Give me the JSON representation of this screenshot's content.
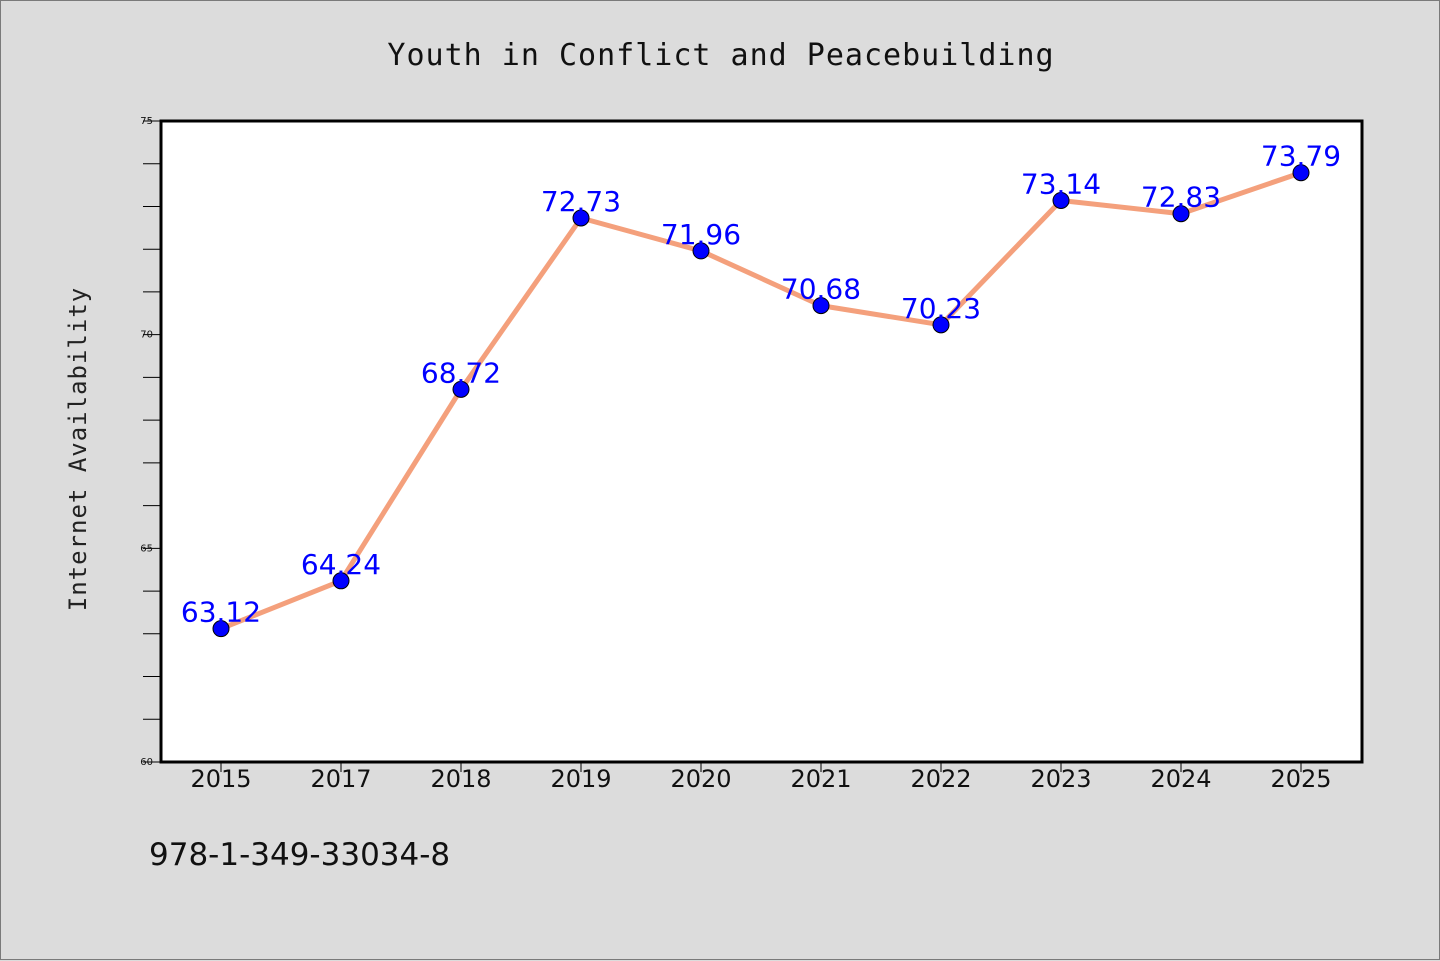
{
  "isbn": "978-1-349-33034-8",
  "colors": {
    "background": "#dcdcdc",
    "plot_area": "#ffffff",
    "line": "#f4a07c",
    "marker": "#0000ff",
    "data_label": "#0000ff"
  },
  "chart_data": {
    "type": "line",
    "title": "Youth in Conflict and Peacebuilding",
    "xlabel": "",
    "ylabel": "Internet Availability",
    "categories": [
      "2015",
      "2017",
      "2018",
      "2019",
      "2020",
      "2021",
      "2022",
      "2023",
      "2024",
      "2025"
    ],
    "series": [
      {
        "values": [
          63.12,
          64.24,
          68.72,
          72.73,
          71.96,
          70.68,
          70.23,
          73.14,
          72.83,
          73.79
        ],
        "labels": [
          "63.12",
          "64.24",
          "68.72",
          "72.73",
          "71.96",
          "70.68",
          "70.23",
          "73.14",
          "72.83",
          "73.79"
        ]
      }
    ],
    "ylim": [
      60,
      75
    ],
    "yticks": [
      60,
      65,
      70,
      75
    ],
    "ytick_labels": [
      "60",
      "65",
      "70",
      "75"
    ],
    "minor_ytick_step": 1,
    "grid": false,
    "legend": "none"
  }
}
